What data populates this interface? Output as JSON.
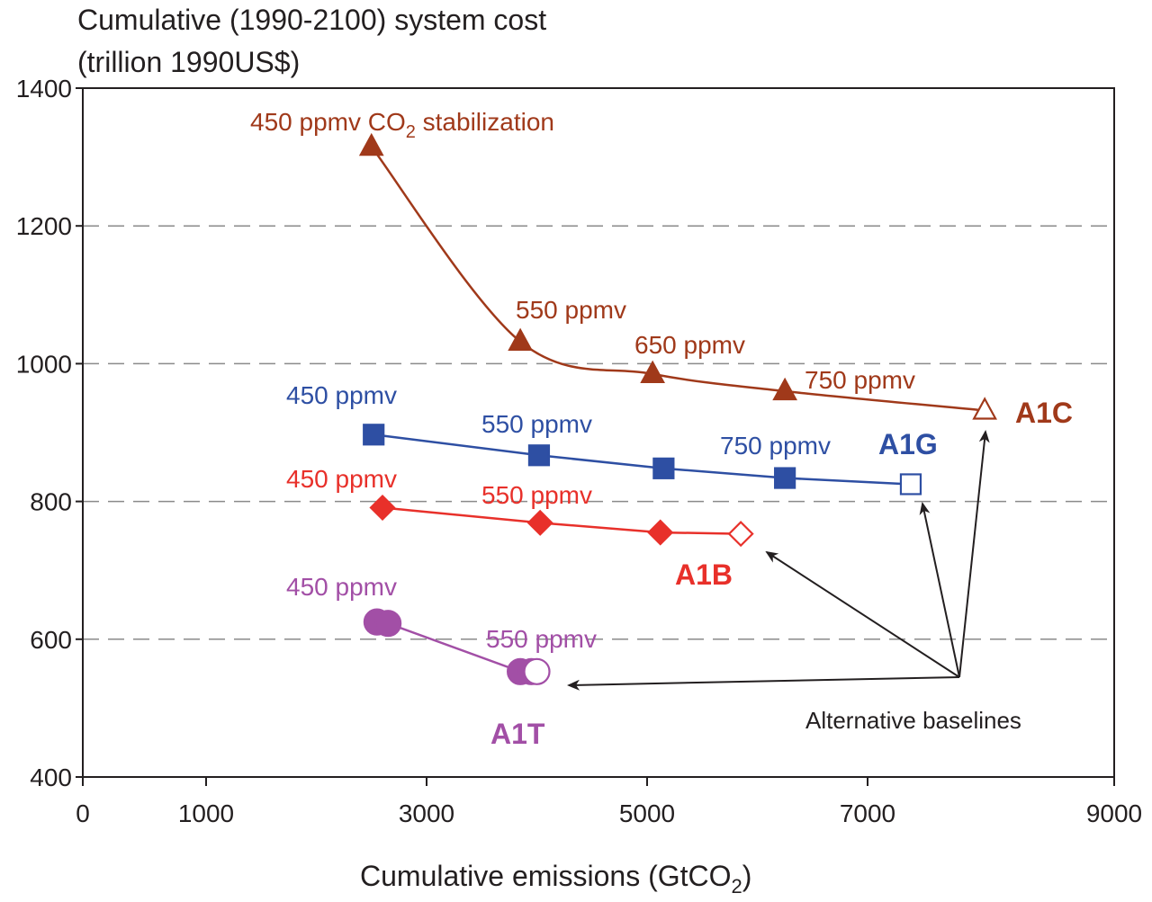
{
  "chart_data": {
    "type": "line",
    "ylabel_lines": [
      "Cumulative (1990-2100) system cost",
      "(trillion 1990US$)"
    ],
    "xlabel": "Cumulative emissions (GtCO",
    "xlabel_sub": "2",
    "xlabel_end": ")",
    "x_ticks": [
      "0",
      "1000",
      "3000",
      "5000",
      "7000",
      "9000"
    ],
    "y_ticks": [
      "400",
      "600",
      "800",
      "1000",
      "1200",
      "1400"
    ],
    "ylim": [
      400,
      1400
    ],
    "grid": "horizontal dashed",
    "series": [
      {
        "name": "A1C",
        "color": "#a0391a",
        "marker": "triangle",
        "points": [
          {
            "x": 2500,
            "y": 1315
          },
          {
            "x": 3850,
            "y": 1032
          },
          {
            "x": 5050,
            "y": 985
          },
          {
            "x": 6250,
            "y": 960
          },
          {
            "x": 7950,
            "y": 932,
            "open": true
          }
        ],
        "labels": [
          "550 ppmv",
          "650 ppmv",
          "750 ppmv"
        ],
        "label_co2": {
          "main": "450 ppmv CO",
          "sub": "2",
          "rest": " stabilization"
        }
      },
      {
        "name": "A1G",
        "color": "#2e4fa3",
        "marker": "square",
        "points": [
          {
            "x": 2520,
            "y": 897
          },
          {
            "x": 4020,
            "y": 867
          },
          {
            "x": 5150,
            "y": 848
          },
          {
            "x": 6250,
            "y": 834
          },
          {
            "x": 7350,
            "y": 825,
            "open": true
          }
        ],
        "labels": [
          "450 ppmv",
          "550 ppmv",
          "750 ppmv"
        ]
      },
      {
        "name": "A1B",
        "color": "#e8302a",
        "marker": "diamond",
        "points": [
          {
            "x": 2600,
            "y": 791
          },
          {
            "x": 4030,
            "y": 769
          },
          {
            "x": 5120,
            "y": 755
          },
          {
            "x": 5850,
            "y": 753,
            "open": true
          }
        ],
        "labels": [
          "450 ppmv",
          "550 ppmv"
        ]
      },
      {
        "name": "A1T",
        "color": "#a24fa6",
        "marker": "circle",
        "points": [
          {
            "x": 2550,
            "y": 625
          },
          {
            "x": 2650,
            "y": 623
          },
          {
            "x": 3850,
            "y": 553
          },
          {
            "x": 3950,
            "y": 553
          },
          {
            "x": 4000,
            "y": 553,
            "open": true
          }
        ],
        "labels": [
          "450 ppmv",
          "550 ppmv"
        ]
      }
    ],
    "annotation": "Alternative baselines"
  }
}
